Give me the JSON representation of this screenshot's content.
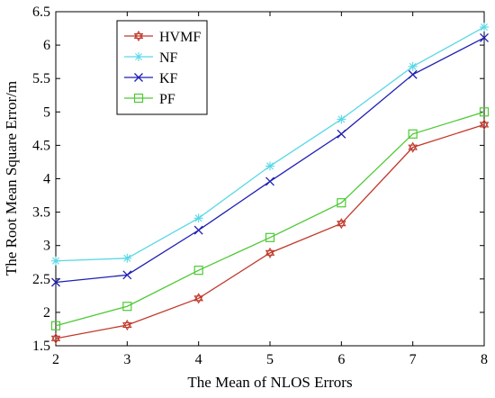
{
  "chart_data": {
    "type": "line",
    "title": "",
    "xlabel": "The Mean of NLOS Errors",
    "ylabel": "The Root Mean Square Error/m",
    "x": [
      2,
      3,
      4,
      5,
      6,
      7,
      8
    ],
    "xlim": [
      2,
      8
    ],
    "ylim": [
      1.5,
      6.5
    ],
    "xticks": [
      "2",
      "3",
      "4",
      "5",
      "6",
      "7",
      "8"
    ],
    "yticks": [
      "1.5",
      "2",
      "2.5",
      "3",
      "3.5",
      "4",
      "4.5",
      "5",
      "5.5",
      "6",
      "6.5"
    ],
    "grid": false,
    "legend_position": "top-left",
    "series": [
      {
        "name": "HVMF",
        "color": "#c0392b",
        "marker": "hexagram",
        "values": [
          1.61,
          1.81,
          2.21,
          2.89,
          3.33,
          4.47,
          4.81
        ]
      },
      {
        "name": "NF",
        "color": "#5ad8e6",
        "marker": "asterisk",
        "values": [
          2.77,
          2.81,
          3.41,
          4.19,
          4.89,
          5.68,
          6.27
        ]
      },
      {
        "name": "KF",
        "color": "#1f1fb4",
        "marker": "x",
        "values": [
          2.45,
          2.56,
          3.23,
          3.96,
          4.67,
          5.56,
          6.11
        ]
      },
      {
        "name": "PF",
        "color": "#4ec934",
        "marker": "square",
        "values": [
          1.8,
          2.09,
          2.63,
          3.12,
          3.64,
          4.67,
          5.0
        ]
      }
    ]
  }
}
